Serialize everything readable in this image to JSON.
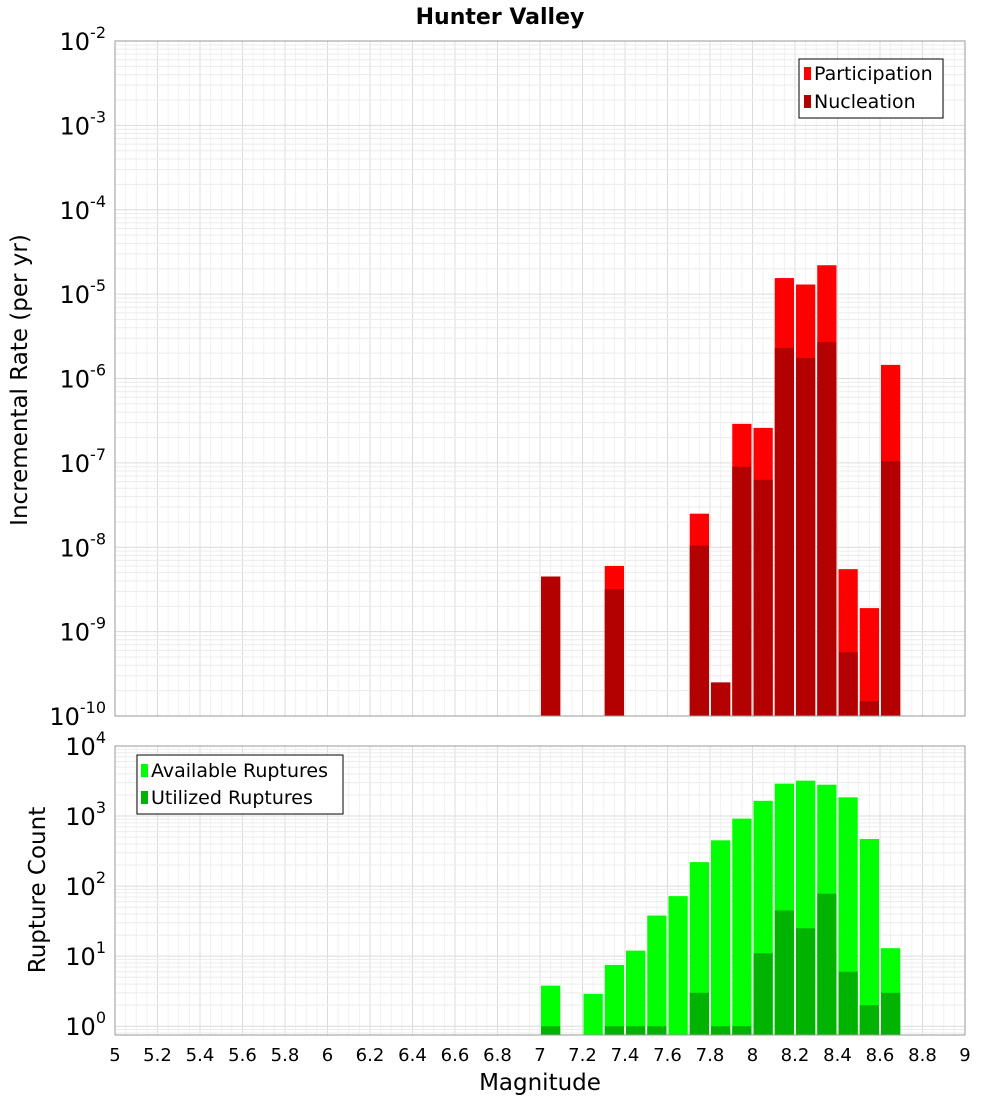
{
  "chart_data": {
    "title": "Hunter Valley",
    "xlabel": "Magnitude",
    "x_ticks": [
      "5",
      "5.2",
      "5.4",
      "5.6",
      "5.8",
      "6",
      "6.2",
      "6.4",
      "6.6",
      "6.8",
      "7",
      "7.2",
      "7.4",
      "7.6",
      "7.8",
      "8",
      "8.2",
      "8.4",
      "8.6",
      "8.8",
      "9"
    ],
    "xlim": [
      5,
      9
    ],
    "bar_width": 0.1,
    "grid": true,
    "panels": [
      {
        "type": "bar",
        "scale": "log",
        "ylabel": "Incremental Rate (per yr)",
        "ylim": [
          1e-10,
          0.01
        ],
        "y_tick_exponents": [
          "-10",
          "-9",
          "-8",
          "-7",
          "-6",
          "-5",
          "-4",
          "-3",
          "-2"
        ],
        "y_tick_base": "10",
        "legend_position": "top-right",
        "series": [
          {
            "name": "Participation",
            "color": "#ff0000",
            "points": [
              {
                "x": 7.05,
                "y": 4.5e-09
              },
              {
                "x": 7.35,
                "y": 6e-09
              },
              {
                "x": 7.75,
                "y": 2.5e-08
              },
              {
                "x": 7.85,
                "y": 2.5e-10
              },
              {
                "x": 7.95,
                "y": 2.9e-07
              },
              {
                "x": 8.05,
                "y": 2.6e-07
              },
              {
                "x": 8.15,
                "y": 1.55e-05
              },
              {
                "x": 8.25,
                "y": 1.3e-05
              },
              {
                "x": 8.35,
                "y": 2.2e-05
              },
              {
                "x": 8.45,
                "y": 5.5e-09
              },
              {
                "x": 8.55,
                "y": 1.9e-09
              },
              {
                "x": 8.65,
                "y": 1.45e-06
              }
            ]
          },
          {
            "name": "Nucleation",
            "color": "#b30000",
            "points": [
              {
                "x": 7.05,
                "y": 4.5e-09
              },
              {
                "x": 7.35,
                "y": 3.2e-09
              },
              {
                "x": 7.75,
                "y": 1.05e-08
              },
              {
                "x": 7.85,
                "y": 2.5e-10
              },
              {
                "x": 7.95,
                "y": 9e-08
              },
              {
                "x": 8.05,
                "y": 6.3e-08
              },
              {
                "x": 8.15,
                "y": 2.3e-06
              },
              {
                "x": 8.25,
                "y": 1.75e-06
              },
              {
                "x": 8.35,
                "y": 2.7e-06
              },
              {
                "x": 8.45,
                "y": 5.7e-10
              },
              {
                "x": 8.55,
                "y": 1.5e-10
              },
              {
                "x": 8.65,
                "y": 1.05e-07
              }
            ]
          }
        ]
      },
      {
        "type": "bar",
        "scale": "log",
        "ylabel": "Rupture Count",
        "ylim": [
          0.75,
          10000
        ],
        "y_tick_exponents": [
          "0",
          "1",
          "2",
          "3",
          "4"
        ],
        "y_tick_base": "10",
        "legend_position": "top-left",
        "series": [
          {
            "name": "Available Ruptures",
            "color": "#00ff00",
            "points": [
              {
                "x": 7.05,
                "y": 3.8
              },
              {
                "x": 7.25,
                "y": 2.9
              },
              {
                "x": 7.35,
                "y": 7.5
              },
              {
                "x": 7.45,
                "y": 12
              },
              {
                "x": 7.55,
                "y": 38
              },
              {
                "x": 7.65,
                "y": 72
              },
              {
                "x": 7.75,
                "y": 220
              },
              {
                "x": 7.85,
                "y": 450
              },
              {
                "x": 7.95,
                "y": 920
              },
              {
                "x": 8.05,
                "y": 1650
              },
              {
                "x": 8.15,
                "y": 2900
              },
              {
                "x": 8.25,
                "y": 3200
              },
              {
                "x": 8.35,
                "y": 2800
              },
              {
                "x": 8.45,
                "y": 1850
              },
              {
                "x": 8.55,
                "y": 470
              },
              {
                "x": 8.65,
                "y": 13
              }
            ]
          },
          {
            "name": "Utilized Ruptures",
            "color": "#00b300",
            "points": [
              {
                "x": 7.05,
                "y": 1
              },
              {
                "x": 7.35,
                "y": 1
              },
              {
                "x": 7.45,
                "y": 1
              },
              {
                "x": 7.55,
                "y": 1
              },
              {
                "x": 7.75,
                "y": 3
              },
              {
                "x": 7.85,
                "y": 1
              },
              {
                "x": 7.95,
                "y": 1
              },
              {
                "x": 8.05,
                "y": 11
              },
              {
                "x": 8.15,
                "y": 45
              },
              {
                "x": 8.25,
                "y": 25
              },
              {
                "x": 8.35,
                "y": 78
              },
              {
                "x": 8.45,
                "y": 6
              },
              {
                "x": 8.55,
                "y": 2
              },
              {
                "x": 8.65,
                "y": 3
              }
            ]
          }
        ]
      }
    ]
  }
}
